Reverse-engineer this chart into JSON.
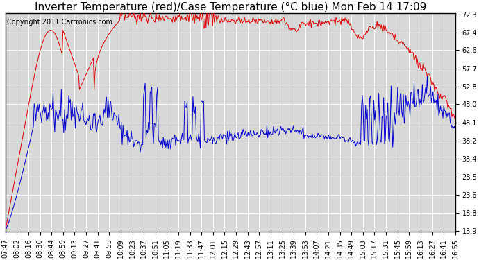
{
  "title": "Inverter Temperature (red)/Case Temperature (°C blue) Mon Feb 14 17:09",
  "copyright": "Copyright 2011 Cartronics.com",
  "yticks": [
    13.9,
    18.8,
    23.6,
    28.5,
    33.4,
    38.2,
    43.1,
    48.0,
    52.8,
    57.7,
    62.6,
    67.4,
    72.3
  ],
  "ymin": 13.9,
  "ymax": 72.3,
  "xtick_labels": [
    "07:47",
    "08:02",
    "08:16",
    "08:30",
    "08:44",
    "08:59",
    "09:13",
    "09:27",
    "09:41",
    "09:55",
    "10:09",
    "10:23",
    "10:37",
    "10:51",
    "11:05",
    "11:19",
    "11:33",
    "11:47",
    "12:01",
    "12:15",
    "12:29",
    "12:43",
    "12:57",
    "13:11",
    "13:25",
    "13:39",
    "13:53",
    "14:07",
    "14:21",
    "14:35",
    "14:49",
    "15:03",
    "15:17",
    "15:31",
    "15:45",
    "15:59",
    "16:13",
    "16:27",
    "16:41",
    "16:55"
  ],
  "background_color": "#ffffff",
  "plot_bg_color": "#d8d8d8",
  "grid_color": "#ffffff",
  "red_color": "#dd0000",
  "blue_color": "#0000cc",
  "title_fontsize": 11,
  "tick_fontsize": 7,
  "copyright_fontsize": 7
}
